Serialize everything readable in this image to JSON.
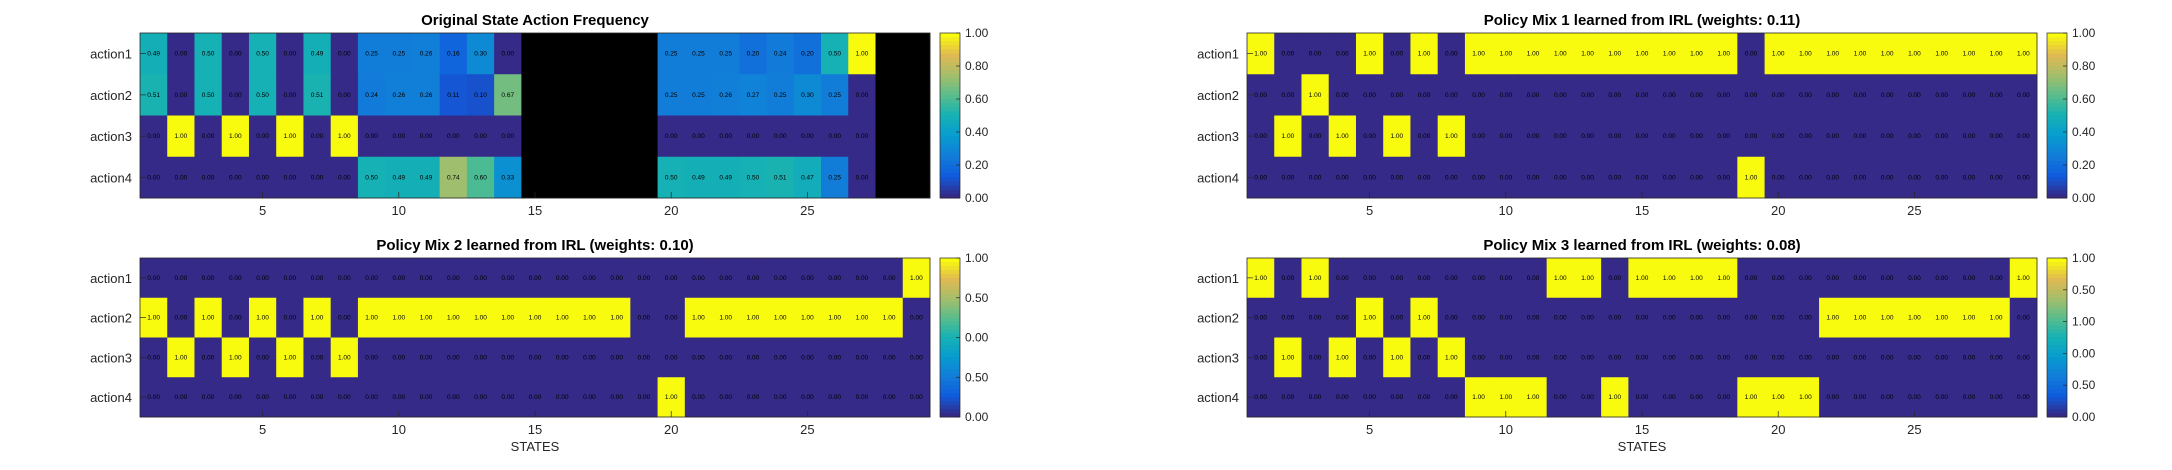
{
  "figure": {
    "xlabel": "STATES"
  },
  "colorbar_ticks": {
    "panel1": [
      "0.00",
      "0.20",
      "0.40",
      "0.60",
      "0.80",
      "1.00"
    ],
    "panel2": [
      "0.00",
      "0.20",
      "0.40",
      "0.60",
      "0.80",
      "1.00"
    ],
    "panel3": [
      "0.00",
      "0.50",
      "0.00",
      "0.50",
      "1.00"
    ],
    "panel4": [
      "0.00",
      "0.50",
      "0.00",
      "1.00",
      "0.50",
      "1.00"
    ]
  },
  "chart_data": [
    {
      "type": "heatmap",
      "title": "Original State Action Frequency",
      "rows": [
        "action1",
        "action2",
        "action3",
        "action4"
      ],
      "xticks": [
        5,
        10,
        15,
        20,
        25
      ],
      "clim": [
        0,
        1
      ],
      "colormap": "parula",
      "missing_color": "#000000",
      "values": [
        [
          0.49,
          0.0,
          0.5,
          0.0,
          0.5,
          0.0,
          0.49,
          0.0,
          0.25,
          0.25,
          0.26,
          0.16,
          0.3,
          0.0,
          null,
          null,
          null,
          null,
          null,
          0.25,
          0.25,
          0.25,
          0.2,
          0.24,
          0.2,
          0.5,
          1.0,
          null,
          null
        ],
        [
          0.51,
          0.0,
          0.5,
          0.0,
          0.5,
          0.0,
          0.51,
          0.0,
          0.24,
          0.26,
          0.26,
          0.11,
          0.1,
          0.67,
          null,
          null,
          null,
          null,
          null,
          0.25,
          0.25,
          0.26,
          0.27,
          0.25,
          0.3,
          0.25,
          0.0,
          null,
          null
        ],
        [
          0.0,
          1.0,
          0.0,
          1.0,
          0.0,
          1.0,
          0.0,
          1.0,
          0.0,
          0.0,
          0.0,
          0.0,
          0.0,
          0.0,
          null,
          null,
          null,
          null,
          null,
          0.0,
          0.0,
          0.0,
          0.0,
          0.0,
          0.0,
          0.0,
          0.0,
          null,
          null
        ],
        [
          0.0,
          0.0,
          0.0,
          0.0,
          0.0,
          0.0,
          0.0,
          0.0,
          0.5,
          0.49,
          0.49,
          0.74,
          0.6,
          0.33,
          null,
          null,
          null,
          null,
          null,
          0.5,
          0.49,
          0.49,
          0.5,
          0.51,
          0.47,
          0.25,
          0.0,
          null,
          null
        ]
      ]
    },
    {
      "type": "heatmap",
      "title": "Policy Mix 1 learned from IRL (weights: 0.11)",
      "rows": [
        "action1",
        "action2",
        "action3",
        "action4"
      ],
      "xticks": [
        5,
        10,
        15,
        20,
        25
      ],
      "clim": [
        0,
        1
      ],
      "colormap": "parula",
      "values": [
        [
          1,
          0,
          0,
          0,
          1,
          0,
          1,
          0,
          1,
          1,
          1,
          1,
          1,
          1,
          1,
          1,
          1,
          1,
          0,
          1,
          1,
          1,
          1,
          1,
          1,
          1,
          1,
          1,
          1
        ],
        [
          0,
          0,
          1,
          0,
          0,
          0,
          0,
          0,
          0,
          0,
          0,
          0,
          0,
          0,
          0,
          0,
          0,
          0,
          0,
          0,
          0,
          0,
          0,
          0,
          0,
          0,
          0,
          0,
          0
        ],
        [
          0,
          1,
          0,
          1,
          0,
          1,
          0,
          1,
          0,
          0,
          0,
          0,
          0,
          0,
          0,
          0,
          0,
          0,
          0,
          0,
          0,
          0,
          0,
          0,
          0,
          0,
          0,
          0,
          0
        ],
        [
          0,
          0,
          0,
          0,
          0,
          0,
          0,
          0,
          0,
          0,
          0,
          0,
          0,
          0,
          0,
          0,
          0,
          0,
          1,
          0,
          0,
          0,
          0,
          0,
          0,
          0,
          0,
          0,
          0
        ]
      ]
    },
    {
      "type": "heatmap",
      "title": "Policy Mix 2 learned from IRL (weights: 0.10)",
      "rows": [
        "action1",
        "action2",
        "action3",
        "action4"
      ],
      "xticks": [
        5,
        10,
        15,
        20,
        25
      ],
      "clim": [
        0,
        1
      ],
      "colormap": "parula",
      "values": [
        [
          0,
          0,
          0,
          0,
          0,
          0,
          0,
          0,
          0,
          0,
          0,
          0,
          0,
          0,
          0,
          0,
          0,
          0,
          0,
          0,
          0,
          0,
          0,
          0,
          0,
          0,
          0,
          0,
          1
        ],
        [
          1,
          0,
          1,
          0,
          1,
          0,
          1,
          0,
          1,
          1,
          1,
          1,
          1,
          1,
          1,
          1,
          1,
          1,
          0,
          0,
          1,
          1,
          1,
          1,
          1,
          1,
          1,
          1,
          0
        ],
        [
          0,
          1,
          0,
          1,
          0,
          1,
          0,
          1,
          0,
          0,
          0,
          0,
          0,
          0,
          0,
          0,
          0,
          0,
          0,
          0,
          0,
          0,
          0,
          0,
          0,
          0,
          0,
          0,
          0
        ],
        [
          0,
          0,
          0,
          0,
          0,
          0,
          0,
          0,
          0,
          0,
          0,
          0,
          0,
          0,
          0,
          0,
          0,
          0,
          0,
          1,
          0,
          0,
          0,
          0,
          0,
          0,
          0,
          0,
          0
        ]
      ]
    },
    {
      "type": "heatmap",
      "title": "Policy Mix 3 learned from IRL (weights: 0.08)",
      "rows": [
        "action1",
        "action2",
        "action3",
        "action4"
      ],
      "xticks": [
        5,
        10,
        15,
        20,
        25
      ],
      "clim": [
        0,
        1
      ],
      "colormap": "parula",
      "values": [
        [
          1,
          0,
          1,
          0,
          0,
          0,
          0,
          0,
          0,
          0,
          0,
          1,
          1,
          0,
          1,
          1,
          1,
          1,
          0,
          0,
          0,
          0,
          0,
          0,
          0,
          0,
          0,
          0,
          1
        ],
        [
          0,
          0,
          0,
          0,
          1,
          0,
          1,
          0,
          0,
          0,
          0,
          0,
          0,
          0,
          0,
          0,
          0,
          0,
          0,
          0,
          0,
          1,
          1,
          1,
          1,
          1,
          1,
          1,
          0
        ],
        [
          0,
          1,
          0,
          1,
          0,
          1,
          0,
          1,
          0,
          0,
          0,
          0,
          0,
          0,
          0,
          0,
          0,
          0,
          0,
          0,
          0,
          0,
          0,
          0,
          0,
          0,
          0,
          0,
          0
        ],
        [
          0,
          0,
          0,
          0,
          0,
          0,
          0,
          0,
          1,
          1,
          1,
          0,
          0,
          1,
          0,
          0,
          0,
          0,
          1,
          1,
          1,
          0,
          0,
          0,
          0,
          0,
          0,
          0,
          0
        ]
      ]
    }
  ]
}
